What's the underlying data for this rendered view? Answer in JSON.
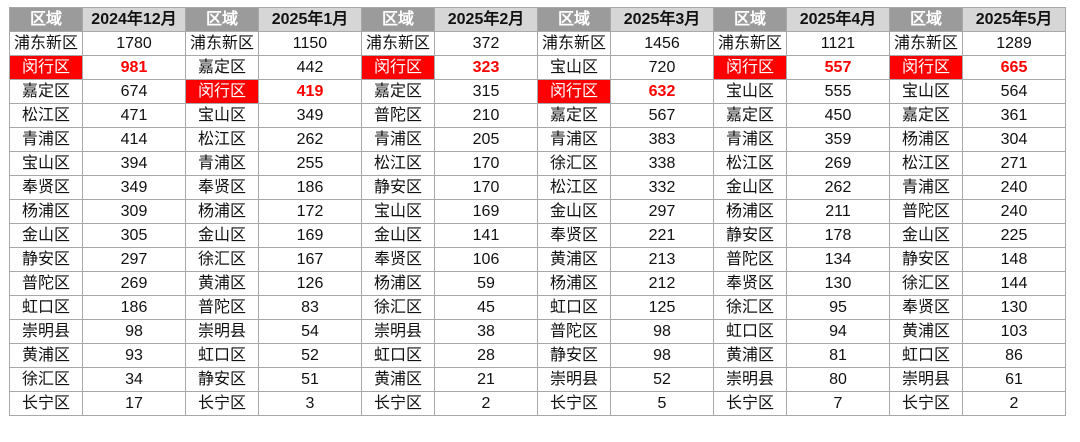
{
  "header": {
    "region_label": "区域"
  },
  "highlight_color": "#ff0000",
  "months": [
    {
      "title": "2024年12月",
      "rows": [
        {
          "region": "浦东新区",
          "value": "1780"
        },
        {
          "region": "闵行区",
          "value": "981",
          "highlight": true
        },
        {
          "region": "嘉定区",
          "value": "674"
        },
        {
          "region": "松江区",
          "value": "471"
        },
        {
          "region": "青浦区",
          "value": "414"
        },
        {
          "region": "宝山区",
          "value": "394"
        },
        {
          "region": "奉贤区",
          "value": "349"
        },
        {
          "region": "杨浦区",
          "value": "309"
        },
        {
          "region": "金山区",
          "value": "305"
        },
        {
          "region": "静安区",
          "value": "297"
        },
        {
          "region": "普陀区",
          "value": "269"
        },
        {
          "region": "虹口区",
          "value": "186"
        },
        {
          "region": "崇明县",
          "value": "98"
        },
        {
          "region": "黄浦区",
          "value": "93"
        },
        {
          "region": "徐汇区",
          "value": "34"
        },
        {
          "region": "长宁区",
          "value": "17"
        }
      ]
    },
    {
      "title": "2025年1月",
      "rows": [
        {
          "region": "浦东新区",
          "value": "1150"
        },
        {
          "region": "嘉定区",
          "value": "442"
        },
        {
          "region": "闵行区",
          "value": "419",
          "highlight": true
        },
        {
          "region": "宝山区",
          "value": "349"
        },
        {
          "region": "松江区",
          "value": "262"
        },
        {
          "region": "青浦区",
          "value": "255"
        },
        {
          "region": "奉贤区",
          "value": "186"
        },
        {
          "region": "杨浦区",
          "value": "172"
        },
        {
          "region": "金山区",
          "value": "169"
        },
        {
          "region": "徐汇区",
          "value": "167"
        },
        {
          "region": "黄浦区",
          "value": "126"
        },
        {
          "region": "普陀区",
          "value": "83"
        },
        {
          "region": "崇明县",
          "value": "54"
        },
        {
          "region": "虹口区",
          "value": "52"
        },
        {
          "region": "静安区",
          "value": "51"
        },
        {
          "region": "长宁区",
          "value": "3"
        }
      ]
    },
    {
      "title": "2025年2月",
      "rows": [
        {
          "region": "浦东新区",
          "value": "372"
        },
        {
          "region": "闵行区",
          "value": "323",
          "highlight": true
        },
        {
          "region": "嘉定区",
          "value": "315"
        },
        {
          "region": "普陀区",
          "value": "210"
        },
        {
          "region": "青浦区",
          "value": "205"
        },
        {
          "region": "松江区",
          "value": "170"
        },
        {
          "region": "静安区",
          "value": "170"
        },
        {
          "region": "宝山区",
          "value": "169"
        },
        {
          "region": "金山区",
          "value": "141"
        },
        {
          "region": "奉贤区",
          "value": "106"
        },
        {
          "region": "杨浦区",
          "value": "59"
        },
        {
          "region": "徐汇区",
          "value": "45"
        },
        {
          "region": "崇明县",
          "value": "38"
        },
        {
          "region": "虹口区",
          "value": "28"
        },
        {
          "region": "黄浦区",
          "value": "21"
        },
        {
          "region": "长宁区",
          "value": "2"
        }
      ]
    },
    {
      "title": "2025年3月",
      "rows": [
        {
          "region": "浦东新区",
          "value": "1456"
        },
        {
          "region": "宝山区",
          "value": "720"
        },
        {
          "region": "闵行区",
          "value": "632",
          "highlight": true
        },
        {
          "region": "嘉定区",
          "value": "567"
        },
        {
          "region": "青浦区",
          "value": "383"
        },
        {
          "region": "徐汇区",
          "value": "338"
        },
        {
          "region": "松江区",
          "value": "332"
        },
        {
          "region": "金山区",
          "value": "297"
        },
        {
          "region": "奉贤区",
          "value": "221"
        },
        {
          "region": "黄浦区",
          "value": "213"
        },
        {
          "region": "杨浦区",
          "value": "212"
        },
        {
          "region": "虹口区",
          "value": "125"
        },
        {
          "region": "普陀区",
          "value": "98"
        },
        {
          "region": "静安区",
          "value": "98"
        },
        {
          "region": "崇明县",
          "value": "52"
        },
        {
          "region": "长宁区",
          "value": "5"
        }
      ]
    },
    {
      "title": "2025年4月",
      "rows": [
        {
          "region": "浦东新区",
          "value": "1121"
        },
        {
          "region": "闵行区",
          "value": "557",
          "highlight": true
        },
        {
          "region": "宝山区",
          "value": "555"
        },
        {
          "region": "嘉定区",
          "value": "450"
        },
        {
          "region": "青浦区",
          "value": "359"
        },
        {
          "region": "松江区",
          "value": "269"
        },
        {
          "region": "金山区",
          "value": "262"
        },
        {
          "region": "杨浦区",
          "value": "211"
        },
        {
          "region": "静安区",
          "value": "178"
        },
        {
          "region": "普陀区",
          "value": "134"
        },
        {
          "region": "奉贤区",
          "value": "130"
        },
        {
          "region": "徐汇区",
          "value": "95"
        },
        {
          "region": "虹口区",
          "value": "94"
        },
        {
          "region": "黄浦区",
          "value": "81"
        },
        {
          "region": "崇明县",
          "value": "80"
        },
        {
          "region": "长宁区",
          "value": "7"
        }
      ]
    },
    {
      "title": "2025年5月",
      "rows": [
        {
          "region": "浦东新区",
          "value": "1289"
        },
        {
          "region": "闵行区",
          "value": "665",
          "highlight": true
        },
        {
          "region": "宝山区",
          "value": "564"
        },
        {
          "region": "嘉定区",
          "value": "361"
        },
        {
          "region": "杨浦区",
          "value": "304"
        },
        {
          "region": "松江区",
          "value": "271"
        },
        {
          "region": "青浦区",
          "value": "240"
        },
        {
          "region": "普陀区",
          "value": "240"
        },
        {
          "region": "金山区",
          "value": "225"
        },
        {
          "region": "静安区",
          "value": "148"
        },
        {
          "region": "徐汇区",
          "value": "144"
        },
        {
          "region": "奉贤区",
          "value": "130"
        },
        {
          "region": "黄浦区",
          "value": "103"
        },
        {
          "region": "虹口区",
          "value": "86"
        },
        {
          "region": "崇明县",
          "value": "61"
        },
        {
          "region": "长宁区",
          "value": "2"
        }
      ]
    }
  ]
}
